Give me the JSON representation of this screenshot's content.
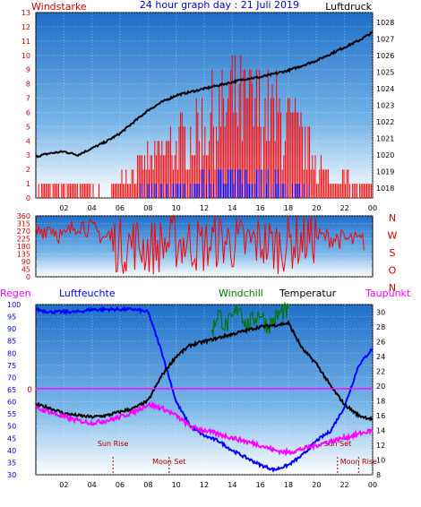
{
  "header": {
    "left_label": "Windstarke",
    "title": "24 hour graph day : 21 Juli 2019",
    "right_label": "Luftdruck"
  },
  "colors": {
    "wind": "#ff0000",
    "gust": "#0000ff",
    "pressure": "#000000",
    "direction": "#ff0000",
    "regen": "#ff00ff",
    "luftfeuchte": "#0000ff",
    "windchill": "#007700",
    "temperatur": "#000000",
    "taupunkt": "#ff00ff",
    "axis_red": "#cc0000",
    "axis_blue": "#0000cc"
  },
  "chart_data": [
    {
      "type": "line",
      "title": "Windstarke / Luftdruck",
      "xlabel": "",
      "ylabel": "Windstarke",
      "x_ticks": [
        "02",
        "04",
        "06",
        "08",
        "10",
        "12",
        "14",
        "16",
        "18",
        "20",
        "22",
        "00"
      ],
      "xlim": [
        0,
        24
      ],
      "ylim": [
        0,
        13
      ],
      "y_ticks": [
        0,
        1,
        2,
        3,
        4,
        5,
        6,
        7,
        8,
        9,
        10,
        11,
        12,
        13
      ],
      "y2label": "Luftdruck",
      "y2lim": [
        1017.4,
        1028.6
      ],
      "y2_ticks": [
        1018,
        1019,
        1020,
        1021,
        1022,
        1023,
        1024,
        1025,
        1026,
        1027,
        1028
      ],
      "series": [
        {
          "name": "Windstarke",
          "axis": "left",
          "x": [
            0,
            1,
            2,
            3,
            4,
            5,
            6,
            7,
            8,
            9,
            10,
            11,
            12,
            13,
            14,
            15,
            16,
            17,
            18,
            19,
            20,
            21,
            22,
            23,
            24
          ],
          "values": [
            1,
            1,
            1,
            1,
            1,
            0,
            2,
            3,
            4,
            5,
            6,
            7,
            8,
            9,
            11,
            10,
            10,
            9,
            8,
            6,
            4,
            2,
            2,
            1,
            1
          ]
        },
        {
          "name": "Windstarke-Min",
          "axis": "left",
          "x": [
            0,
            1,
            2,
            3,
            4,
            5,
            6,
            7,
            8,
            9,
            10,
            11,
            12,
            13,
            14,
            15,
            16,
            17,
            18,
            19,
            20,
            21,
            22,
            23,
            24
          ],
          "values": [
            0,
            0,
            0,
            0,
            0,
            0,
            0,
            0,
            1,
            1,
            1,
            1,
            2,
            2,
            2,
            2,
            2,
            2,
            1,
            1,
            0,
            0,
            0,
            0,
            0
          ]
        },
        {
          "name": "Luftdruck",
          "axis": "right",
          "x": [
            0,
            1,
            2,
            3,
            4,
            5,
            6,
            7,
            8,
            9,
            10,
            11,
            12,
            13,
            14,
            15,
            16,
            17,
            18,
            19,
            20,
            21,
            22,
            23,
            24
          ],
          "values": [
            1019.9,
            1020.1,
            1020.2,
            1020.0,
            1020.4,
            1020.8,
            1021.3,
            1022.0,
            1022.7,
            1023.2,
            1023.6,
            1023.8,
            1024.0,
            1024.2,
            1024.4,
            1024.6,
            1024.7,
            1024.9,
            1025.1,
            1025.4,
            1025.7,
            1026.1,
            1026.5,
            1026.9,
            1027.4
          ]
        }
      ]
    },
    {
      "type": "line",
      "title": "",
      "xlabel": "",
      "ylabel": "",
      "xlim": [
        0,
        24
      ],
      "ylim": [
        0,
        360
      ],
      "y_ticks": [
        0,
        45,
        90,
        135,
        180,
        225,
        270,
        315,
        360
      ],
      "y2_tick_labels": [
        "N",
        "W",
        "S",
        "O",
        "N"
      ],
      "series": [
        {
          "name": "Windrichtung",
          "x": [
            0,
            1,
            2,
            3,
            4,
            5,
            6,
            7,
            8,
            9,
            10,
            11,
            12,
            13,
            14,
            15,
            16,
            17,
            18,
            19,
            20,
            21,
            22,
            23,
            24
          ],
          "values": [
            260,
            300,
            230,
            320,
            280,
            230,
            180,
            200,
            170,
            190,
            210,
            200,
            180,
            220,
            200,
            190,
            210,
            180,
            200,
            220,
            240,
            230,
            220,
            210,
            200
          ]
        }
      ]
    },
    {
      "type": "line",
      "title": "",
      "xlabel": "",
      "x_ticks": [
        "02",
        "04",
        "06",
        "08",
        "10",
        "12",
        "14",
        "16",
        "18",
        "20",
        "22",
        "00"
      ],
      "xlim": [
        0,
        24
      ],
      "ylabel": "Luftfeuchte",
      "ylim": [
        30,
        100
      ],
      "y_ticks": [
        30,
        35,
        40,
        45,
        50,
        55,
        60,
        65,
        70,
        75,
        80,
        85,
        90,
        95,
        100
      ],
      "y2label": "Temperatur",
      "y2lim": [
        8,
        31
      ],
      "y2_ticks": [
        8,
        10,
        12,
        14,
        16,
        18,
        20,
        22,
        24,
        26,
        28,
        30
      ],
      "regen_label": "Regen",
      "regen_value": "0",
      "legend": [
        "Regen",
        "Luftfeuchte",
        "Windchill",
        "Temperatur",
        "Taupunkt"
      ],
      "annotations": [
        {
          "label": "Sun Rise",
          "x": 5.5
        },
        {
          "label": "Moon Set",
          "x": 9.5
        },
        {
          "label": "Sun Set",
          "x": 21.5
        },
        {
          "label": "Moon Rise",
          "x": 23.0
        }
      ],
      "series": [
        {
          "name": "Luftfeuchte",
          "axis": "left",
          "x": [
            0,
            1,
            2,
            3,
            4,
            5,
            6,
            7,
            8,
            9,
            10,
            11,
            12,
            13,
            14,
            15,
            16,
            17,
            18,
            19,
            20,
            21,
            22,
            23,
            24
          ],
          "values": [
            98,
            97,
            97,
            97,
            98,
            98,
            98,
            98,
            97,
            80,
            60,
            50,
            46,
            44,
            40,
            37,
            34,
            32,
            34,
            38,
            44,
            48,
            58,
            75,
            82
          ]
        },
        {
          "name": "Windchill",
          "axis": "right",
          "x": [
            12.5,
            13,
            13.5,
            14,
            14.5,
            15,
            15.5,
            16,
            16.5,
            17,
            17.5,
            18
          ],
          "values": [
            27,
            30,
            28,
            29,
            31,
            28,
            29,
            30,
            28,
            29,
            30,
            30
          ]
        },
        {
          "name": "Temperatur",
          "axis": "right",
          "x": [
            0,
            1,
            2,
            3,
            4,
            5,
            6,
            7,
            8,
            9,
            10,
            11,
            12,
            13,
            14,
            15,
            16,
            17,
            18,
            19,
            20,
            21,
            22,
            23,
            24
          ],
          "values": [
            17.5,
            17.0,
            16.3,
            16.0,
            15.8,
            16.0,
            16.5,
            17.0,
            18.0,
            21.5,
            24.0,
            25.5,
            26.0,
            26.5,
            27.0,
            27.5,
            28.0,
            28.2,
            28.5,
            25.0,
            23.0,
            20.0,
            17.5,
            16.0,
            15.5
          ]
        },
        {
          "name": "Taupunkt",
          "axis": "right",
          "x": [
            0,
            1,
            2,
            3,
            4,
            5,
            6,
            7,
            8,
            9,
            10,
            11,
            12,
            13,
            14,
            15,
            16,
            17,
            18,
            19,
            20,
            21,
            22,
            23,
            24
          ],
          "values": [
            17,
            16.5,
            15.8,
            15.3,
            15.0,
            15.3,
            15.8,
            16.5,
            17.5,
            17.0,
            16.0,
            14.5,
            14.0,
            13.5,
            13.0,
            12.5,
            12.0,
            11.3,
            11.0,
            11.5,
            12.0,
            12.5,
            13.0,
            13.5,
            14.0
          ]
        }
      ]
    }
  ]
}
